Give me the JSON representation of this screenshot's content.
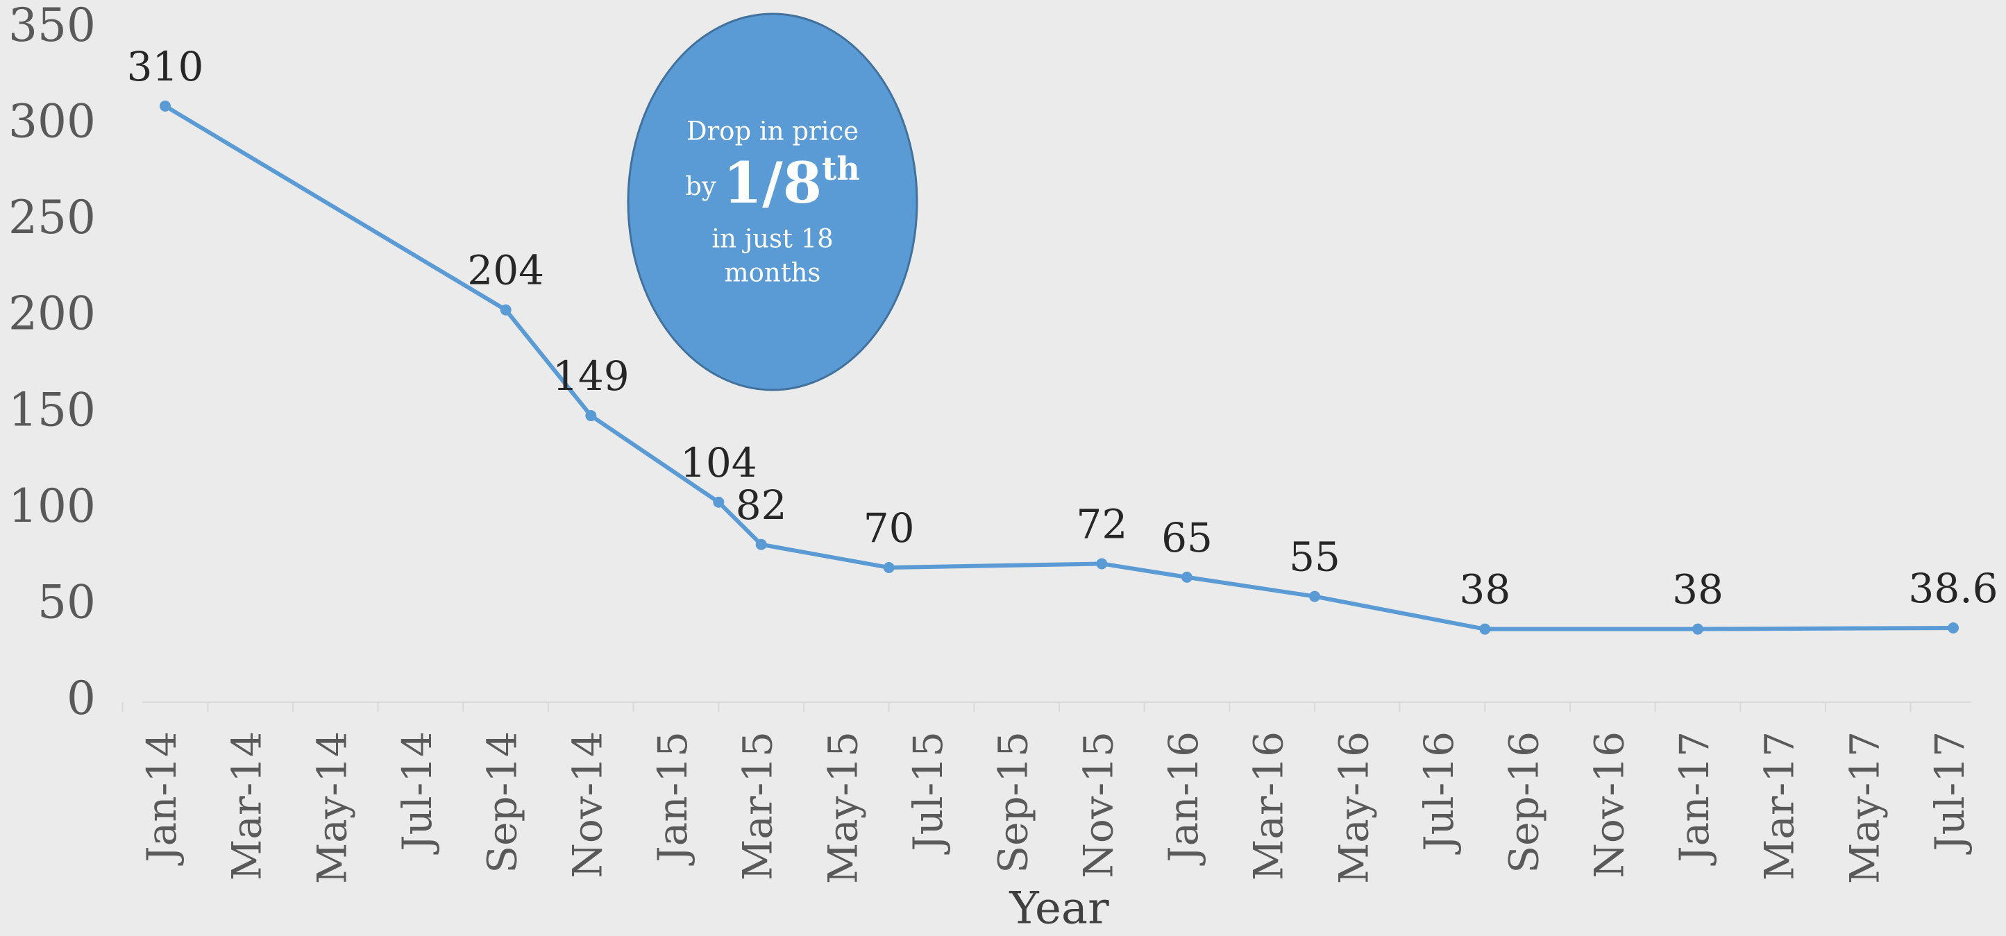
{
  "chart_data": {
    "type": "line",
    "x_label": "Year",
    "x": [
      "Jan-14",
      "Sep-14",
      "Nov-14",
      "Feb-15",
      "Mar-15",
      "Jun-15",
      "Nov-15",
      "Jan-16",
      "Apr-16",
      "Aug-16",
      "Jan-17",
      "Jul-17"
    ],
    "series": [
      {
        "name": "Price",
        "color": "#5b9bd5",
        "values": [
          310,
          204,
          149,
          104,
          82,
          70,
          72,
          65,
          55,
          38,
          38,
          38.6
        ]
      }
    ],
    "xlim": [
      "Jan-14",
      "Jul-17"
    ],
    "xticks": [
      "Jan-14",
      "Mar-14",
      "May-14",
      "Jul-14",
      "Sep-14",
      "Nov-14",
      "Jan-15",
      "Mar-15",
      "May-15",
      "Jul-15",
      "Sep-15",
      "Nov-15",
      "Jan-16",
      "Mar-16",
      "May-16",
      "Jul-16",
      "Sep-16",
      "Nov-16",
      "Jan-17",
      "Mar-17",
      "May-17",
      "Jul-17"
    ],
    "ylim": [
      0,
      350
    ],
    "yticks": [
      0,
      50,
      100,
      150,
      200,
      250,
      300,
      350
    ],
    "annotation": {
      "line1": "Drop in price",
      "by": "by",
      "fraction": "1/8",
      "suffix": "th",
      "line3": "in just 18",
      "line4": "months"
    }
  }
}
